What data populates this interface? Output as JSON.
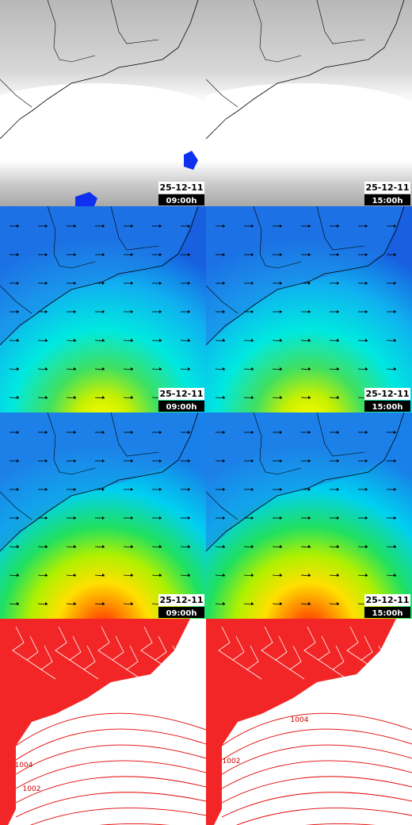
{
  "panels": [
    {
      "date": "25-12-11",
      "time": "09:00h"
    },
    {
      "date": "25-12-11",
      "time": "15:00h"
    },
    {
      "date": "25-12-11",
      "time": "09:00h"
    },
    {
      "date": "25-12-11",
      "time": "15:00h"
    },
    {
      "date": "25-12-11",
      "time": "09:00h"
    },
    {
      "date": "25-12-11",
      "time": "15:00h"
    }
  ],
  "isobars": [
    {
      "labels": [
        "1004",
        "1002"
      ]
    },
    {
      "labels": [
        "1004",
        "1002"
      ]
    }
  ]
}
